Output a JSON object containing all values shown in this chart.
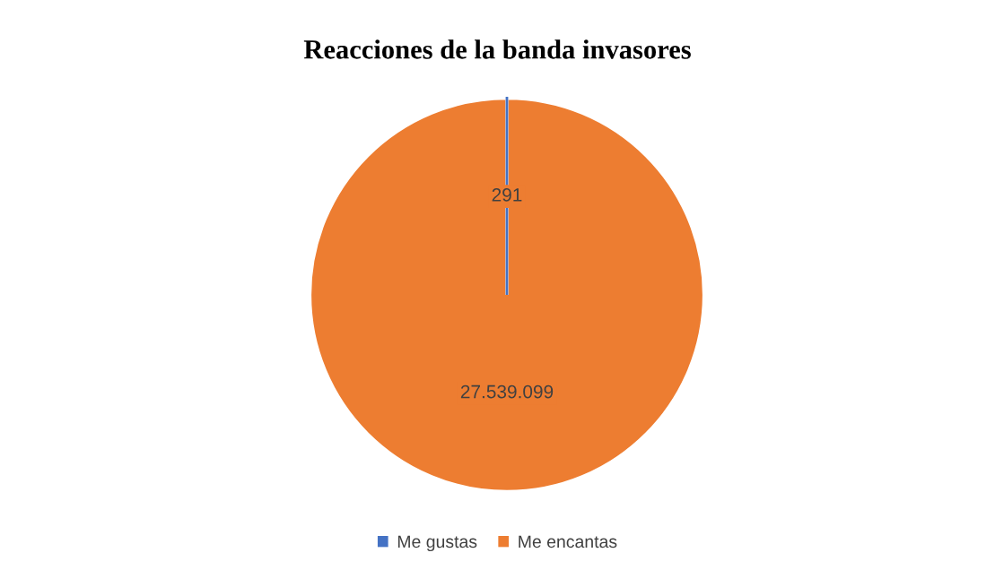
{
  "chart_data": {
    "type": "pie",
    "title": "Reacciones de la banda invasores",
    "categories": [
      "Me gustas",
      "Me encantas"
    ],
    "values": [
      291,
      27539099
    ],
    "colors": [
      "#4472c4",
      "#ed7d31"
    ],
    "value_labels": [
      "291",
      "27.539.099"
    ],
    "legend": "bottom"
  }
}
